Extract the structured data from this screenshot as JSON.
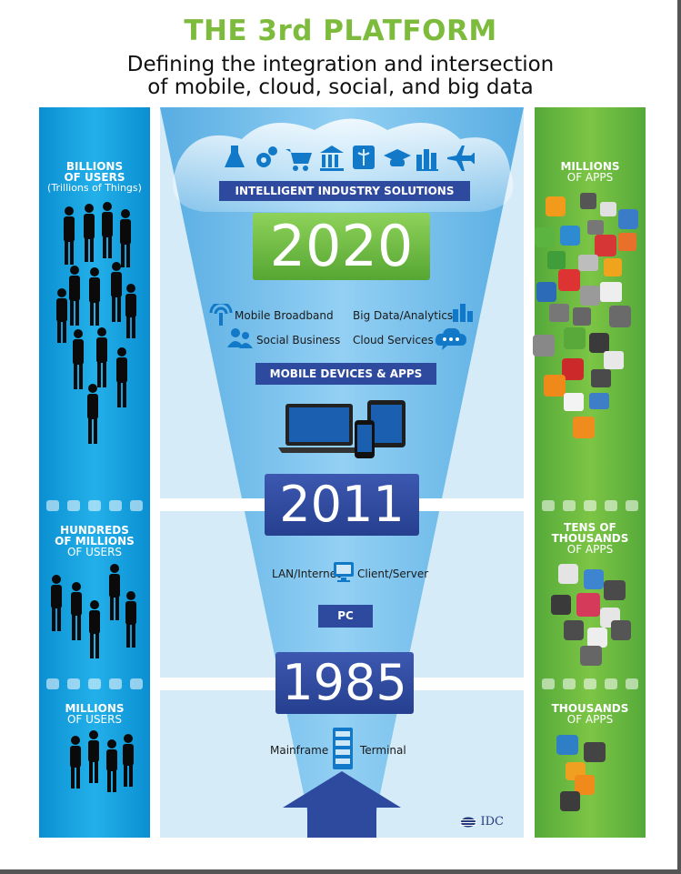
{
  "header": {
    "title": "THE 3rd PLATFORM",
    "subtitle_line1": "Defining the integration and intersection",
    "subtitle_line2": "of mobile, cloud, social, and big data"
  },
  "users": {
    "tier1": {
      "line1": "BILLIONS",
      "line2": "OF USERS",
      "line3": "(Trillions of Things)"
    },
    "tier2": {
      "line1": "HUNDREDS",
      "line2": "OF MILLIONS",
      "line3": "OF USERS"
    },
    "tier3": {
      "line1": "MILLIONS",
      "line2": "OF USERS"
    }
  },
  "apps": {
    "tier1": {
      "line1": "MILLIONS",
      "line2": "OF APPS"
    },
    "tier2": {
      "line1": "TENS OF",
      "line2": "THOUSANDS",
      "line3": "OF APPS"
    },
    "tier3": {
      "line1": "THOUSANDS",
      "line2": "OF APPS"
    }
  },
  "eras": {
    "era2020": {
      "year": "2020",
      "banner": "INTELLIGENT INDUSTRY SOLUTIONS",
      "mobile_broadband": "Mobile Broadband",
      "big_data": "Big Data/Analytics",
      "social_business": "Social Business",
      "cloud_services": "Cloud Services",
      "devices_label": "MOBILE DEVICES & APPS"
    },
    "era2011": {
      "year": "2011",
      "lan": "LAN/Internet",
      "client_server": "Client/Server",
      "pc_label": "PC"
    },
    "era1985": {
      "year": "1985",
      "mainframe": "Mainframe",
      "terminal": "Terminal"
    }
  },
  "brand": {
    "logo": "IDC"
  },
  "colors": {
    "title_green": "#7dbb3c",
    "users_blue": "#1aa3e0",
    "apps_green": "#6fbb3f",
    "year_2020_green": "#6dba3f",
    "year_box_navy": "#2e4a9e",
    "funnel_blue": "#5fb2e6"
  },
  "icons": [
    "flask-icon",
    "gears-icon",
    "cart-icon",
    "bank-icon",
    "caduceus-icon",
    "graduation-cap-icon",
    "bar-chart-icon",
    "airplane-icon",
    "wifi-tower-icon",
    "people-icon",
    "chat-cloud-icon",
    "laptop-icon",
    "tablet-icon",
    "phone-icon",
    "monitor-icon",
    "server-icon",
    "up-arrow-icon"
  ]
}
